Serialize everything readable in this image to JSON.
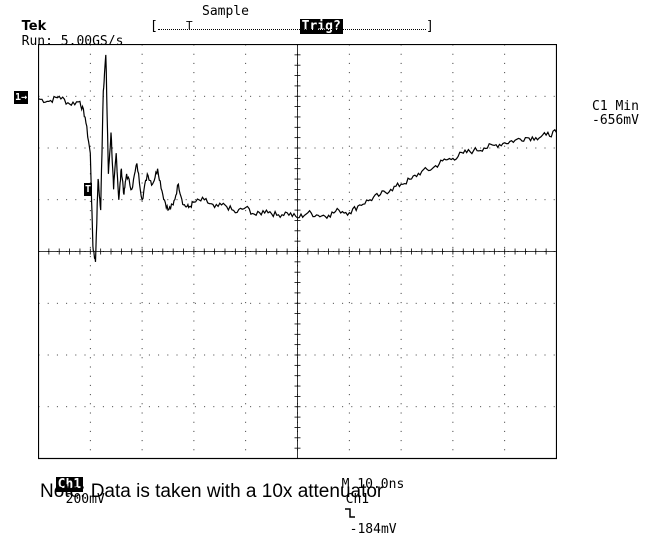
{
  "header": {
    "brand": "Tek",
    "run_status": "Run: 5.00GS/s",
    "acq_mode": "Sample",
    "trig_status": "Trig?"
  },
  "trigger_bar": {
    "bracket_left": "[",
    "bracket_right": "]",
    "trigger_position_marker": "T"
  },
  "channel_marker": "1→",
  "trigger_marker": "T",
  "measurement": {
    "label": "C1 Min",
    "value": "-656mV"
  },
  "footer": {
    "channel": "Ch1",
    "volts_per_div": "200mV",
    "timebase": "M 10.0ns",
    "trigger_source": "Ch1",
    "trigger_slope_icon": "falling-edge-icon",
    "trigger_level": "-184mV"
  },
  "note": "Note: Data is taken with a 10x attenuator",
  "chart_data": {
    "type": "line",
    "title": "",
    "xlabel": "",
    "ylabel": "",
    "x_divisions": 10,
    "y_divisions": 8,
    "x_unit": "div",
    "y_unit": "div",
    "xlim": [
      0,
      10
    ],
    "ylim": [
      -4,
      4
    ],
    "grid": true,
    "series": [
      {
        "x": [
          0,
          0.2,
          0.4,
          0.6,
          0.8,
          0.9,
          1.0,
          1.05,
          1.1,
          1.15,
          1.2,
          1.25,
          1.3,
          1.35,
          1.4,
          1.45,
          1.5,
          1.55,
          1.6,
          1.65,
          1.7,
          1.8,
          1.9,
          2.0,
          2.1,
          2.2,
          2.3,
          2.4,
          2.5,
          2.6,
          2.7,
          2.8,
          2.9,
          3.0,
          3.2,
          3.4,
          3.6,
          3.8,
          4.0,
          4.2,
          4.4,
          4.6,
          4.8,
          5.0,
          5.2,
          5.4,
          5.6,
          5.8,
          6.0,
          6.2,
          6.4,
          6.6,
          6.8,
          7.0,
          7.2,
          7.4,
          7.6,
          7.8,
          8.0,
          8.2,
          8.4,
          8.6,
          8.8,
          9.0,
          9.2,
          9.4,
          9.6,
          9.8,
          10.0
        ],
        "y": [
          2.95,
          2.9,
          3.0,
          2.85,
          2.9,
          2.6,
          1.9,
          0.1,
          -0.2,
          1.4,
          0.8,
          3.1,
          3.8,
          1.5,
          2.3,
          1.2,
          1.9,
          1.0,
          1.6,
          1.1,
          1.5,
          1.2,
          1.7,
          1.0,
          1.5,
          1.3,
          1.6,
          1.1,
          0.8,
          0.9,
          1.3,
          0.9,
          0.85,
          0.95,
          1.0,
          0.85,
          0.9,
          0.75,
          0.85,
          0.7,
          0.8,
          0.7,
          0.75,
          0.65,
          0.75,
          0.7,
          0.7,
          0.8,
          0.75,
          0.9,
          1.0,
          1.1,
          1.2,
          1.3,
          1.4,
          1.55,
          1.6,
          1.75,
          1.8,
          1.9,
          1.95,
          2.0,
          2.05,
          2.1,
          2.15,
          2.2,
          2.2,
          2.25,
          2.3
        ]
      }
    ]
  }
}
